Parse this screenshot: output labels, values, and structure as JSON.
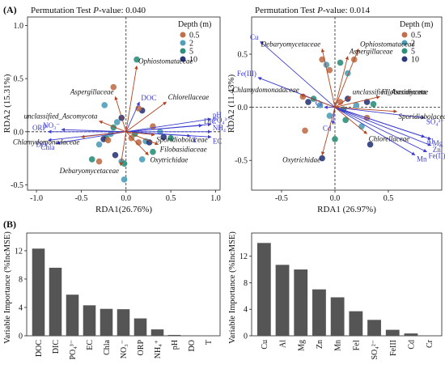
{
  "figure": {
    "panel_labels": [
      "(A)",
      "(B)"
    ]
  },
  "chart_data": [
    {
      "type": "scatter",
      "subtype": "rda-biplot",
      "title": "Permutation Test P-value: 0.040",
      "title_prefix": "Permutation Test ",
      "title_p": "P",
      "title_suffix": "-value: 0.040",
      "xlabel": "RDA1(26.76%)",
      "ylabel": "RDA2 (15.31%)",
      "xlim": [
        -1.1,
        1.05
      ],
      "ylim": [
        -0.55,
        1.08
      ],
      "xticks": [
        -1.0,
        -0.5,
        0.0,
        0.5,
        1.0
      ],
      "yticks": [
        -0.5,
        0.0,
        0.5,
        1.0
      ],
      "xtick_labels": [
        "-1.0",
        "-0.5",
        "0.0",
        "0.5",
        "1.0"
      ],
      "ytick_labels": [
        "-0.5",
        "0.0",
        "0.5",
        "1.0"
      ],
      "legend": {
        "title": "Depth (m)",
        "entries": [
          {
            "label": "0.5",
            "color": "#c0704a"
          },
          {
            "label": "2",
            "color": "#4f9fb8"
          },
          {
            "label": "5",
            "color": "#2f8f7a"
          },
          {
            "label": "10",
            "color": "#2b3a7a"
          }
        ],
        "placement": "top-right"
      },
      "env_vectors": [
        {
          "name": "DOC",
          "x": 0.15,
          "y": 0.28
        },
        {
          "name": "pH",
          "x": 0.95,
          "y": 0.12
        },
        {
          "name": "PO₄³⁻",
          "x": 0.95,
          "y": 0.07
        },
        {
          "name": "DIC",
          "x": 0.85,
          "y": 0.06
        },
        {
          "name": "NH₄⁺",
          "x": 0.95,
          "y": 0.0
        },
        {
          "name": "T",
          "x": 0.72,
          "y": -0.04
        },
        {
          "name": "EC",
          "x": 0.95,
          "y": -0.05
        },
        {
          "name": "ORP",
          "x": -0.87,
          "y": 0.0
        },
        {
          "name": "NO₃⁻",
          "x": -0.72,
          "y": 0.02
        },
        {
          "name": "DO",
          "x": -0.87,
          "y": -0.08
        },
        {
          "name": "Chla",
          "x": -0.78,
          "y": -0.11
        }
      ],
      "species_vectors": [
        {
          "name": "Ophiostomataceae",
          "x": 0.12,
          "y": 0.62
        },
        {
          "name": "Aspergillaceae",
          "x": -0.12,
          "y": 0.33
        },
        {
          "name": "Chlorellaceae",
          "x": 0.45,
          "y": 0.28
        },
        {
          "name": "unclassified_Ascomycota",
          "x": -0.3,
          "y": 0.1
        },
        {
          "name": "Chlamydomonadaceae",
          "x": -0.5,
          "y": -0.05
        },
        {
          "name": "Debaryomycetaceae",
          "x": -0.06,
          "y": -0.32
        },
        {
          "name": "Oxytrichidae",
          "x": 0.25,
          "y": -0.22
        },
        {
          "name": "Filobasidiaceae",
          "x": 0.36,
          "y": -0.12
        },
        {
          "name": "Sporidiobolaceae",
          "x": 0.32,
          "y": -0.03
        }
      ],
      "points": [
        {
          "x": 0.12,
          "y": 0.68,
          "depth": "5"
        },
        {
          "x": -0.14,
          "y": 0.42,
          "depth": "0.5"
        },
        {
          "x": -0.24,
          "y": 0.25,
          "depth": "2"
        },
        {
          "x": 0.18,
          "y": 0.2,
          "depth": "10"
        },
        {
          "x": 0.14,
          "y": 0.22,
          "depth": "0.5"
        },
        {
          "x": -0.05,
          "y": 0.13,
          "depth": "10"
        },
        {
          "x": -0.1,
          "y": 0.09,
          "depth": "2"
        },
        {
          "x": -0.14,
          "y": 0.04,
          "depth": "5"
        },
        {
          "x": -0.17,
          "y": -0.02,
          "depth": "2"
        },
        {
          "x": -0.22,
          "y": -0.06,
          "depth": "5"
        },
        {
          "x": -0.25,
          "y": -0.07,
          "depth": "10"
        },
        {
          "x": -0.2,
          "y": -0.08,
          "depth": "0.5"
        },
        {
          "x": -0.3,
          "y": -0.12,
          "depth": "2"
        },
        {
          "x": -0.3,
          "y": -0.28,
          "depth": "0.5"
        },
        {
          "x": -0.38,
          "y": -0.26,
          "depth": "5"
        },
        {
          "x": -0.12,
          "y": -0.22,
          "depth": "10"
        },
        {
          "x": -0.05,
          "y": -0.28,
          "depth": "2"
        },
        {
          "x": -0.02,
          "y": -0.3,
          "depth": "5"
        },
        {
          "x": 0.06,
          "y": -0.06,
          "depth": "0.5"
        },
        {
          "x": 0.1,
          "y": -0.02,
          "depth": "5"
        },
        {
          "x": 0.14,
          "y": -0.1,
          "depth": "0.5"
        },
        {
          "x": 0.22,
          "y": -0.09,
          "depth": "2"
        },
        {
          "x": 0.26,
          "y": -0.1,
          "depth": "10"
        },
        {
          "x": 0.3,
          "y": -0.19,
          "depth": "5"
        },
        {
          "x": 0.18,
          "y": -0.26,
          "depth": "2"
        },
        {
          "x": 0.42,
          "y": -0.05,
          "depth": "10"
        },
        {
          "x": 0.5,
          "y": -0.06,
          "depth": "5"
        },
        {
          "x": 0.38,
          "y": 0.0,
          "depth": "2"
        },
        {
          "x": 0.3,
          "y": 0.05,
          "depth": "0.5"
        },
        {
          "x": -0.02,
          "y": -0.45,
          "depth": "2"
        }
      ]
    },
    {
      "type": "scatter",
      "subtype": "rda-biplot",
      "title": "Permutation Test P-value: 0.014",
      "title_prefix": "Permutation Test ",
      "title_p": "P",
      "title_suffix": "-value: 0.014",
      "xlabel": "RDA1 (26.97%)",
      "ylabel": "RDA2 (11.43%)",
      "xlim": [
        -0.78,
        1.0
      ],
      "ylim": [
        -0.78,
        0.85
      ],
      "xticks": [
        -0.5,
        0.0,
        0.5
      ],
      "yticks": [
        -0.5,
        0.0,
        0.5
      ],
      "xtick_labels": [
        "-0.5",
        "0.0",
        "0.5"
      ],
      "ytick_labels": [
        "-0.5",
        "0.0",
        "0.5"
      ],
      "legend": {
        "title": "Depth (m)",
        "entries": [
          {
            "label": "0.5",
            "color": "#c0704a"
          },
          {
            "label": "2",
            "color": "#4f9fb8"
          },
          {
            "label": "5",
            "color": "#2f8f7a"
          },
          {
            "label": "10",
            "color": "#2b3a7a"
          }
        ],
        "placement": "top-right"
      },
      "env_vectors": [
        {
          "name": "Cu",
          "x": -0.7,
          "y": 0.62
        },
        {
          "name": "Fe(III)",
          "x": -0.72,
          "y": 0.28
        },
        {
          "name": "Cr",
          "x": -0.1,
          "y": 0.0
        },
        {
          "name": "Cd",
          "x": -0.02,
          "y": -0.16
        },
        {
          "name": "SO₄²⁻",
          "x": 0.84,
          "y": -0.1
        },
        {
          "name": "Al",
          "x": 0.84,
          "y": -0.28
        },
        {
          "name": "Mg",
          "x": 0.9,
          "y": -0.3
        },
        {
          "name": "Zn",
          "x": 0.9,
          "y": -0.36
        },
        {
          "name": "Fe(II)",
          "x": 0.86,
          "y": -0.42
        },
        {
          "name": "Mn",
          "x": 0.75,
          "y": -0.45
        }
      ],
      "species_vectors": [
        {
          "name": "Debaryomycetaceae",
          "x": -0.12,
          "y": 0.55
        },
        {
          "name": "Ophiostomataceae",
          "x": 0.22,
          "y": 0.55
        },
        {
          "name": "Aspergillaceae",
          "x": 0.12,
          "y": 0.48
        },
        {
          "name": "Chlamydomonadaceae",
          "x": -0.32,
          "y": 0.12
        },
        {
          "name": "unclassified_Ascomycota",
          "x": 0.15,
          "y": 0.1
        },
        {
          "name": "Filobasidiaceae",
          "x": 0.42,
          "y": 0.1
        },
        {
          "name": "Sporidiobolaceae",
          "x": 0.58,
          "y": -0.04
        },
        {
          "name": "Chlorellaceae",
          "x": 0.3,
          "y": -0.25
        },
        {
          "name": "Oxytrichidae",
          "x": -0.12,
          "y": -0.45
        }
      ],
      "points": [
        {
          "x": -0.12,
          "y": 0.45,
          "depth": "0.5"
        },
        {
          "x": -0.08,
          "y": 0.4,
          "depth": "2"
        },
        {
          "x": -0.05,
          "y": 0.35,
          "depth": "0.5"
        },
        {
          "x": 0.05,
          "y": 0.42,
          "depth": "5"
        },
        {
          "x": 0.18,
          "y": 0.45,
          "depth": "0.5"
        },
        {
          "x": 0.12,
          "y": 0.32,
          "depth": "2"
        },
        {
          "x": -0.3,
          "y": 0.1,
          "depth": "0.5"
        },
        {
          "x": -0.25,
          "y": 0.05,
          "depth": "10"
        },
        {
          "x": -0.2,
          "y": 0.08,
          "depth": "5"
        },
        {
          "x": -0.14,
          "y": 0.02,
          "depth": "2"
        },
        {
          "x": 0.05,
          "y": 0.05,
          "depth": "0.5"
        },
        {
          "x": 0.12,
          "y": 0.08,
          "depth": "10"
        },
        {
          "x": 0.08,
          "y": -0.02,
          "depth": "5"
        },
        {
          "x": 0.2,
          "y": 0.02,
          "depth": "2"
        },
        {
          "x": 0.3,
          "y": 0.05,
          "depth": "10"
        },
        {
          "x": 0.3,
          "y": -0.1,
          "depth": "0.5"
        },
        {
          "x": 0.1,
          "y": -0.12,
          "depth": "5"
        },
        {
          "x": 0.0,
          "y": -0.3,
          "depth": "5"
        },
        {
          "x": -0.12,
          "y": -0.48,
          "depth": "10"
        },
        {
          "x": -0.28,
          "y": -0.22,
          "depth": "0.5"
        },
        {
          "x": 0.36,
          "y": 0.03,
          "depth": "5"
        },
        {
          "x": 0.33,
          "y": -0.35,
          "depth": "10"
        },
        {
          "x": 0.25,
          "y": -0.18,
          "depth": "2"
        },
        {
          "x": -0.05,
          "y": -0.08,
          "depth": "2"
        }
      ]
    },
    {
      "type": "bar",
      "ylabel": "Variable Importance (%IncMSE)",
      "categories": [
        "DOC",
        "DIC",
        "PO₄³⁻",
        "EC",
        "Chla",
        "NO₃⁻",
        "ORP",
        "NH₄⁺",
        "pH",
        "DO",
        "T"
      ],
      "values": [
        12.3,
        9.6,
        5.8,
        4.3,
        3.8,
        3.75,
        2.45,
        0.9,
        0.12,
        0.04,
        0.0
      ],
      "ylim": [
        0,
        14.5
      ],
      "yticks": [
        0,
        4,
        8,
        12
      ],
      "ytick_labels": [
        "0",
        "4",
        "8",
        "12"
      ],
      "bar_color": "#555555"
    },
    {
      "type": "bar",
      "ylabel": "Variable Importance (%IncMSE)",
      "categories": [
        "Cu",
        "Al",
        "Mg",
        "Zn",
        "Mn",
        "FeI",
        "SO₄²⁻",
        "FeIII",
        "Cd",
        "Cr"
      ],
      "values": [
        14.0,
        10.7,
        10.0,
        7.0,
        5.8,
        3.7,
        2.4,
        0.9,
        0.35,
        0.0
      ],
      "ylim": [
        0,
        15.5
      ],
      "yticks": [
        0,
        4,
        8,
        12
      ],
      "ytick_labels": [
        "0",
        "4",
        "8",
        "12"
      ],
      "bar_color": "#555555"
    }
  ]
}
